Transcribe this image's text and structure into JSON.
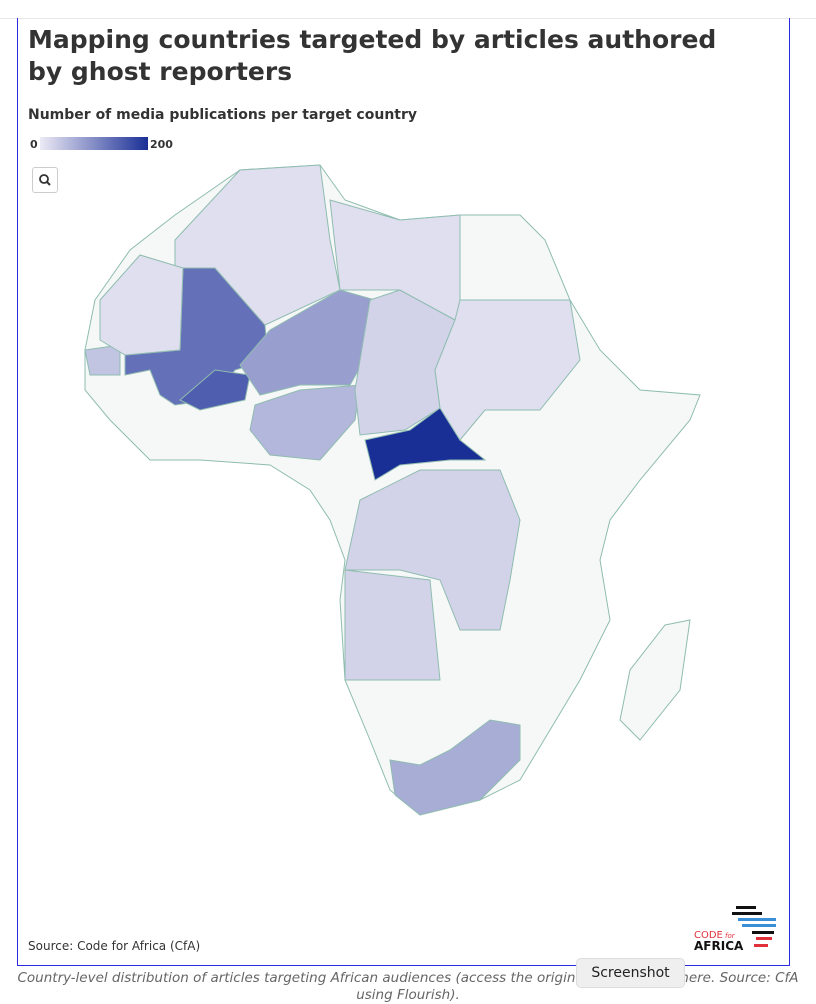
{
  "header": {
    "title": "Mapping countries targeted by articles authored by ghost reporters",
    "subtitle": "Number of media publications per target country"
  },
  "legend": {
    "min": 0,
    "max": 200,
    "colors": [
      "#eceaf5",
      "#1a2f96"
    ]
  },
  "map": {
    "values": [
      130,
      150,
      80,
      55,
      200,
      25,
      65,
      40,
      25,
      25,
      12,
      12,
      12,
      12
    ]
  },
  "source": "Source: Code for Africa (CfA)",
  "logo": {
    "line1": "CODE",
    "line2": "for",
    "line3": "AFRICA"
  },
  "caption": "Country-level distribution of articles targeting African audiences (access the original visualisation here. Source: CfA using Flourish).",
  "tooltip": "Screenshot"
}
